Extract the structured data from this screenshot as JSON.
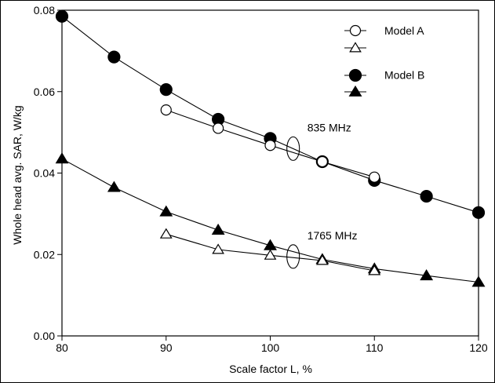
{
  "chart_data": {
    "type": "line",
    "title": "",
    "xlabel": "Scale factor L, %",
    "ylabel": "Whole head avg. SAR, W/kg",
    "xlim": [
      80,
      120
    ],
    "ylim": [
      0.0,
      0.08
    ],
    "xticks": [
      80,
      90,
      100,
      110,
      120
    ],
    "xtick_labels": [
      "80",
      "90",
      "100",
      "110",
      "120"
    ],
    "yticks": [
      0.0,
      0.02,
      0.04,
      0.06,
      0.08
    ],
    "ytick_labels": [
      "0.00",
      "0.02",
      "0.04",
      "0.06",
      "0.08"
    ],
    "grid": false,
    "legend": {
      "position": "top-right",
      "entries": [
        {
          "label": "Model A",
          "markers": [
            "open-circle",
            "open-triangle"
          ]
        },
        {
          "label": "Model B",
          "markers": [
            "filled-circle",
            "filled-triangle"
          ]
        }
      ]
    },
    "annotations": [
      {
        "text": "835 MHz",
        "x": 102.2,
        "y": 0.046
      },
      {
        "text": "1765 MHz",
        "x": 102.2,
        "y": 0.0195
      }
    ],
    "series": [
      {
        "group": "Model B",
        "frequency": "835 MHz",
        "marker": "filled-circle",
        "x": [
          80,
          85,
          90,
          95,
          100,
          105,
          110,
          115,
          120
        ],
        "y": [
          0.0785,
          0.0685,
          0.0605,
          0.0532,
          0.0485,
          0.0428,
          0.0382,
          0.0343,
          0.0303
        ]
      },
      {
        "group": "Model A",
        "frequency": "835 MHz",
        "marker": "open-circle",
        "x": [
          90,
          95,
          100,
          105,
          110
        ],
        "y": [
          0.0555,
          0.051,
          0.0468,
          0.0428,
          0.039
        ]
      },
      {
        "group": "Model B",
        "frequency": "1765 MHz",
        "marker": "filled-triangle",
        "x": [
          80,
          85,
          90,
          95,
          100,
          105,
          110,
          115,
          120
        ],
        "y": [
          0.0435,
          0.0365,
          0.0305,
          0.026,
          0.0222,
          0.0188,
          0.0165,
          0.0148,
          0.0132
        ]
      },
      {
        "group": "Model A",
        "frequency": "1765 MHz",
        "marker": "open-triangle",
        "x": [
          90,
          95,
          100,
          105,
          110
        ],
        "y": [
          0.025,
          0.0212,
          0.0198,
          0.0185,
          0.016
        ]
      }
    ]
  }
}
